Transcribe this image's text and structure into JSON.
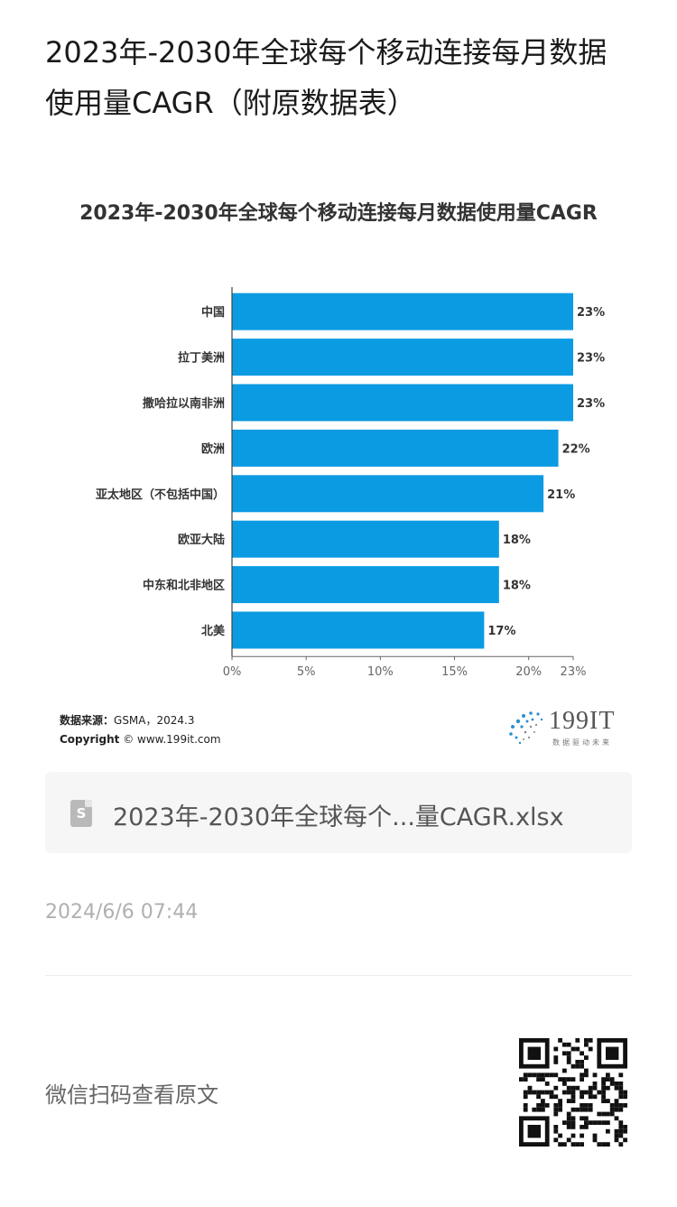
{
  "post": {
    "title": "2023年-2030年全球每个移动连接每月数据使用量CAGR（附原数据表）"
  },
  "chart_data": {
    "type": "bar",
    "orientation": "horizontal",
    "title": "2023年-2030年全球每个移动连接每月数据使用量CAGR",
    "categories": [
      "中国",
      "拉丁美洲",
      "撒哈拉以南非洲",
      "欧洲",
      "亚太地区（不包括中国）",
      "欧亚大陆",
      "中东和北非地区",
      "北美"
    ],
    "values": [
      23,
      23,
      23,
      22,
      21,
      18,
      18,
      17
    ],
    "value_labels": [
      "23%",
      "23%",
      "23%",
      "22%",
      "21%",
      "18%",
      "18%",
      "17%"
    ],
    "xticks": [
      0,
      5,
      10,
      15,
      20,
      23
    ],
    "xtick_labels": [
      "0%",
      "5%",
      "10%",
      "15%",
      "20%",
      "23%"
    ],
    "xlim": [
      0,
      23
    ],
    "grid": false,
    "bar_color": "#0b9be3"
  },
  "source": {
    "label": "数据来源：",
    "value": "GSMA，2024.3",
    "copyright_label": "Copyright",
    "copyright_value": "© www.199it.com"
  },
  "brand": {
    "name": "199IT",
    "slogan": "数据驱动未来"
  },
  "file": {
    "icon": "file-s-icon",
    "name": "2023年-2030年全球每个...量CAGR.xlsx"
  },
  "timestamp": "2024/6/6 07:44",
  "footer": {
    "scan_hint": "微信扫码查看原文",
    "qr_icon": "qr-code-icon"
  }
}
